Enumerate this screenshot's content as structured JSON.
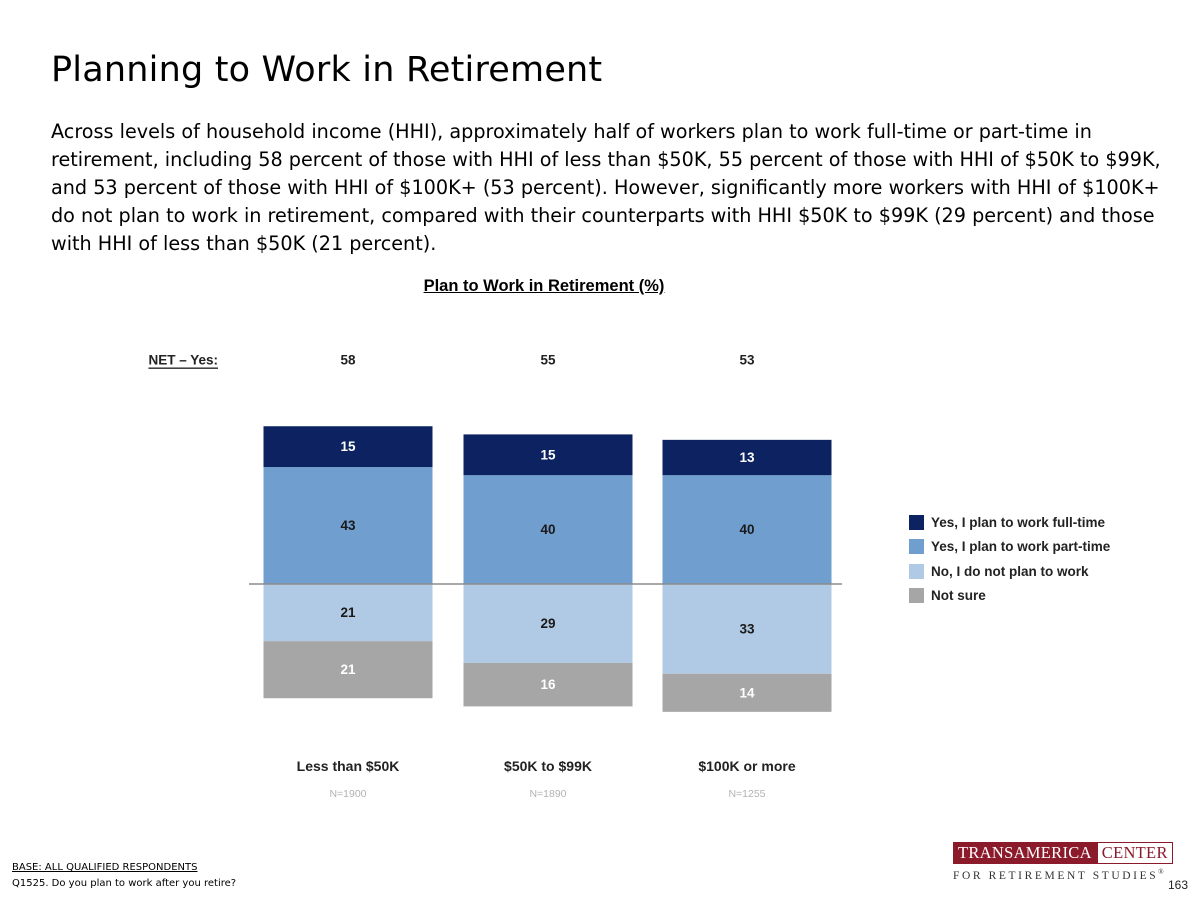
{
  "page": {
    "title": "Planning to Work in Retirement",
    "description": "Across levels of household income (HHI), approximately half of workers plan to work full-time or part-time in retirement, including 58 percent of those with HHI of less than $50K, 55 percent of those with HHI of $50K to $99K, and 53 percent of those with HHI of $100K+ (53 percent). However, significantly more workers with HHI of $100K+ do not plan to work in retirement, compared with their counterparts with HHI $50K to $99K (29 percent) and those with HHI of less than $50K (21 percent).",
    "page_number": "163"
  },
  "footer": {
    "base": "BASE: ALL QUALIFIED RESPONDENTS",
    "question": "Q1525. Do you plan to work after you retire?"
  },
  "logo": {
    "left": "TRANSAMERICA",
    "right": "CENTER",
    "bottom": "FOR RETIREMENT STUDIES",
    "mark": "®"
  },
  "chart_data": {
    "type": "bar",
    "stacked": "diverging",
    "title": "Plan to Work in Retirement (%)",
    "net_label": "NET – Yes:",
    "categories": [
      "Less than $50K",
      "$50K to $99K",
      "$100K or more"
    ],
    "sample_sizes": [
      "N=1900",
      "N=1890",
      "N=1255"
    ],
    "net_yes": [
      58,
      55,
      53
    ],
    "series": [
      {
        "name": "Yes, I plan to work full-time",
        "values": [
          15,
          15,
          13
        ],
        "color": "#0d2361",
        "direction": "up"
      },
      {
        "name": "Yes, I plan to work part-time",
        "values": [
          43,
          40,
          40
        ],
        "color": "#6f9ecf",
        "direction": "up"
      },
      {
        "name": "No, I do not plan to work",
        "values": [
          21,
          29,
          33
        ],
        "color": "#b0c9e4",
        "direction": "down"
      },
      {
        "name": "Not sure",
        "values": [
          21,
          16,
          14
        ],
        "color": "#a6a6a6",
        "direction": "down"
      }
    ],
    "legend_position": "right",
    "grid": false
  }
}
